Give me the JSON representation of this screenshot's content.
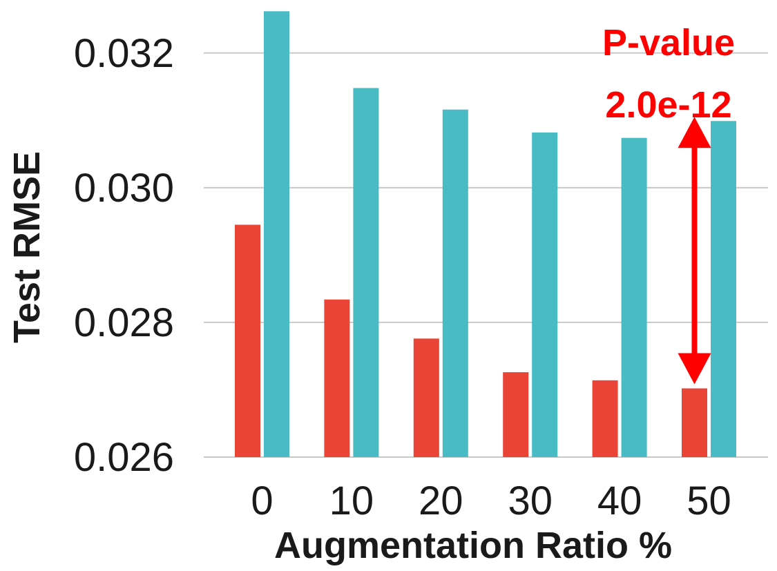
{
  "chart_data": {
    "type": "bar",
    "categories": [
      "0",
      "10",
      "20",
      "30",
      "40",
      "50"
    ],
    "series": [
      {
        "color": "#e94435",
        "values": [
          0.02945,
          0.02834,
          0.02776,
          0.02726,
          0.02714,
          0.02702
        ]
      },
      {
        "color": "#48bbc5",
        "values": [
          0.03262,
          0.03148,
          0.03116,
          0.03082,
          0.03074,
          0.03099
        ]
      }
    ],
    "xlabel": "Augmentation Ratio %",
    "ylabel": "Test RMSE",
    "ylim": [
      0.026,
      0.0325
    ],
    "yticks": [
      "0.026",
      "0.028",
      "0.030",
      "0.032"
    ],
    "ytick_values": [
      0.026,
      0.028,
      0.03,
      0.032
    ],
    "grid": true,
    "legend": "none",
    "annotation": {
      "line1": "P-value",
      "line2": "2.0e-12",
      "color": "#ff0000",
      "category": "50"
    }
  }
}
